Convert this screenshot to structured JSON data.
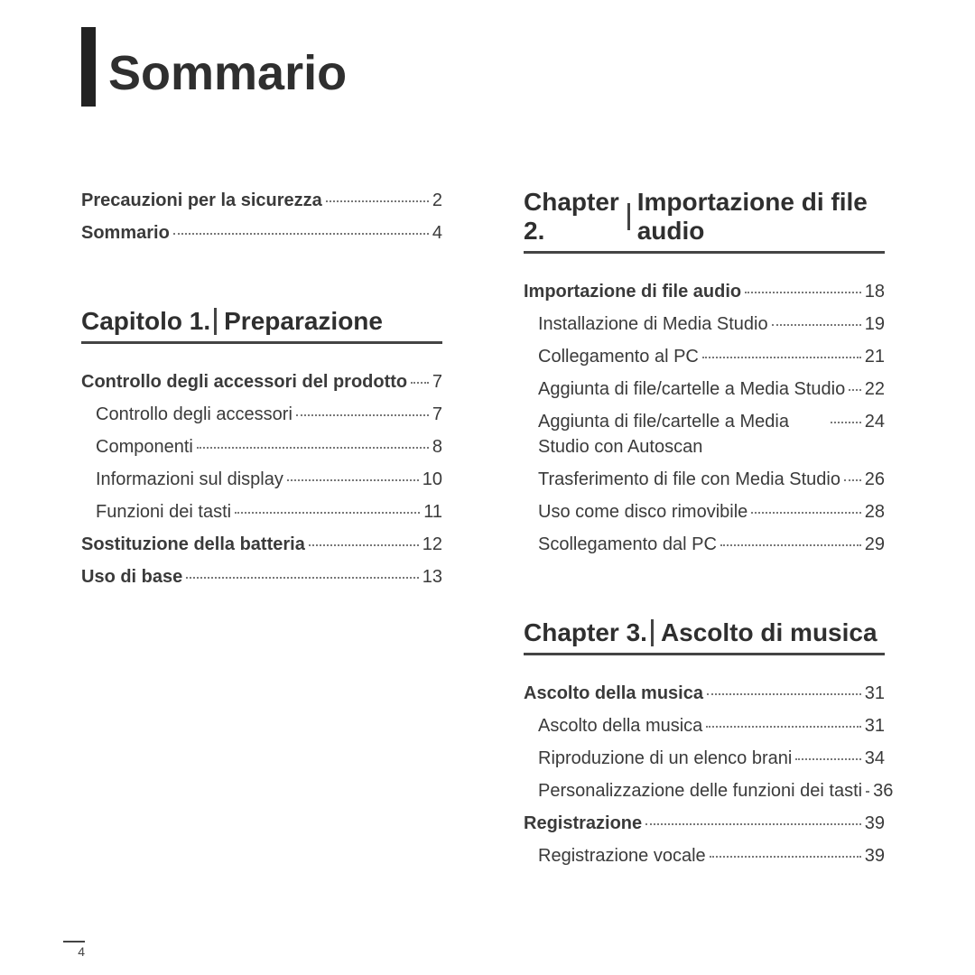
{
  "page_title": "Sommario",
  "page_number": "4",
  "left_column": {
    "top_entries": [
      {
        "label": "Precauzioni per la sicurezza",
        "page": "2",
        "bold": true,
        "indent": false
      },
      {
        "label": "Sommario",
        "page": "4",
        "bold": true,
        "indent": false
      }
    ],
    "chapter": {
      "prefix": "Capitolo 1.",
      "title": "Preparazione"
    },
    "entries": [
      {
        "label": "Controllo degli accessori del prodotto",
        "page": "7",
        "bold": true,
        "indent": false
      },
      {
        "label": "Controllo degli accessori",
        "page": "7",
        "bold": false,
        "indent": true
      },
      {
        "label": "Componenti",
        "page": "8",
        "bold": false,
        "indent": true
      },
      {
        "label": "Informazioni sul display",
        "page": "10",
        "bold": false,
        "indent": true
      },
      {
        "label": "Funzioni dei tasti",
        "page": "11",
        "bold": false,
        "indent": true
      },
      {
        "label": "Sostituzione della batteria",
        "page": "12",
        "bold": true,
        "indent": false
      },
      {
        "label": "Uso di base",
        "page": "13",
        "bold": true,
        "indent": false
      }
    ]
  },
  "right_column": {
    "chapter2": {
      "prefix": "Chapter 2.",
      "title": "Importazione di file audio"
    },
    "entries2": [
      {
        "label": "Importazione di file audio",
        "page": "18",
        "bold": true,
        "indent": false
      },
      {
        "label": "Installazione di Media Studio",
        "page": "19",
        "bold": false,
        "indent": true
      },
      {
        "label": "Collegamento al PC",
        "page": "21",
        "bold": false,
        "indent": true
      },
      {
        "label": "Aggiunta di file/cartelle a Media Studio",
        "page": "22",
        "bold": false,
        "indent": true
      },
      {
        "label": "Aggiunta di file/cartelle a Media Studio con Autoscan",
        "page": "24",
        "bold": false,
        "indent": true,
        "wrap": true
      },
      {
        "label": "Trasferimento di file con Media Studio",
        "page": "26",
        "bold": false,
        "indent": true
      },
      {
        "label": "Uso come disco rimovibile",
        "page": "28",
        "bold": false,
        "indent": true
      },
      {
        "label": "Scollegamento dal PC",
        "page": "29",
        "bold": false,
        "indent": true
      }
    ],
    "chapter3": {
      "prefix": "Chapter 3.",
      "title": "Ascolto di musica"
    },
    "entries3": [
      {
        "label": "Ascolto della musica",
        "page": "31",
        "bold": true,
        "indent": false
      },
      {
        "label": "Ascolto della musica",
        "page": "31",
        "bold": false,
        "indent": true
      },
      {
        "label": "Riproduzione di un elenco brani",
        "page": "34",
        "bold": false,
        "indent": true
      },
      {
        "label": "Personalizzazione delle funzioni dei tasti",
        "page": "36",
        "bold": false,
        "indent": true,
        "tight": true
      },
      {
        "label": "Registrazione",
        "page": "39",
        "bold": true,
        "indent": false
      },
      {
        "label": "Registrazione vocale",
        "page": "39",
        "bold": false,
        "indent": true
      }
    ]
  }
}
